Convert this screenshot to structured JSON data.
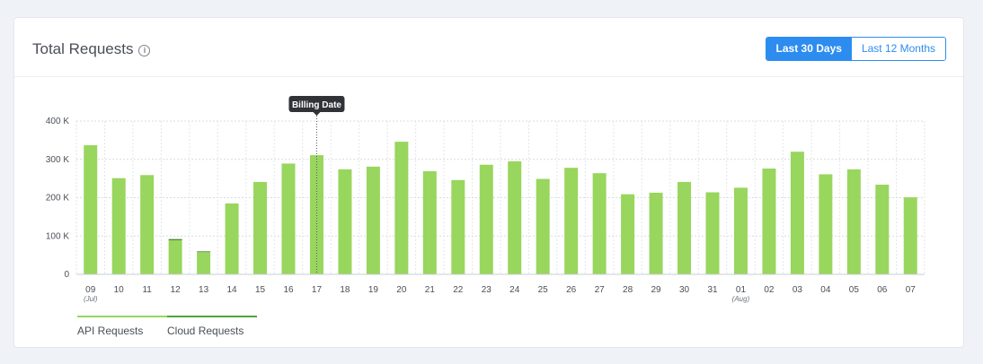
{
  "header": {
    "title": "Total Requests",
    "info_icon": "info-circle-icon"
  },
  "range_toggle": {
    "options": [
      "Last 30 Days",
      "Last 12 Months"
    ],
    "selected": "Last 30 Days",
    "active_color": "#2d8cf0"
  },
  "tooltip": {
    "label": "Billing Date",
    "at_category": "17"
  },
  "chart_data": {
    "type": "bar",
    "stacked": true,
    "categories": [
      "09",
      "10",
      "11",
      "12",
      "13",
      "14",
      "15",
      "16",
      "17",
      "18",
      "19",
      "20",
      "21",
      "22",
      "23",
      "24",
      "25",
      "26",
      "27",
      "28",
      "29",
      "30",
      "31",
      "01",
      "02",
      "03",
      "04",
      "05",
      "06",
      "07"
    ],
    "category_sublabels": {
      "09": "(Jul)",
      "01": "(Aug)"
    },
    "series": [
      {
        "name": "API Requests",
        "color": "#98d65e",
        "values": [
          337000,
          251000,
          259000,
          89000,
          58000,
          185000,
          241000,
          289000,
          311000,
          274000,
          281000,
          346000,
          269000,
          246000,
          286000,
          295000,
          249000,
          278000,
          264000,
          209000,
          213000,
          241000,
          214000,
          226000,
          276000,
          320000,
          261000,
          274000,
          234000,
          201000
        ]
      },
      {
        "name": "Cloud Requests",
        "color": "#4e7e34",
        "values": [
          0,
          0,
          0,
          3000,
          2000,
          0,
          0,
          0,
          0,
          0,
          0,
          0,
          0,
          0,
          0,
          0,
          0,
          0,
          0,
          0,
          0,
          0,
          0,
          0,
          0,
          0,
          0,
          0,
          0,
          0
        ]
      }
    ],
    "y_ticks": [
      0,
      100000,
      200000,
      300000,
      400000
    ],
    "y_tick_labels": [
      "0",
      "100 K",
      "200 K",
      "300 K",
      "400 K"
    ],
    "ylim": [
      0,
      400000
    ],
    "grid": true
  }
}
